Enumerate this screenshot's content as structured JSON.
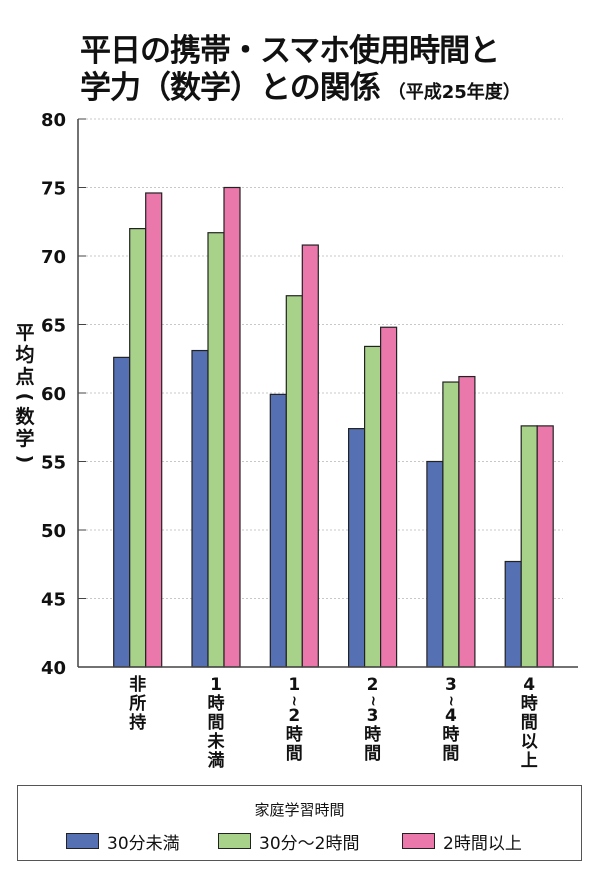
{
  "title": {
    "line1": "平日の携帯・スマホ使用時間と",
    "line2": "学力（数学）との関係",
    "subtitle": "（平成25年度）"
  },
  "ylabel_chars": [
    "平",
    "均",
    "点",
    "(",
    "数",
    "学",
    ")"
  ],
  "legend": {
    "title": "家庭学習時間",
    "items": [
      {
        "label": "30分未満",
        "color": "#5670B4"
      },
      {
        "label": "30分〜2時間",
        "color": "#A8D18A"
      },
      {
        "label": "2時間以上",
        "color": "#EA78AB"
      }
    ]
  },
  "chart_data": {
    "type": "bar",
    "title": "平日の携帯・スマホ使用時間と学力（数学）との関係（平成25年度）",
    "xlabel": "",
    "ylabel": "平均点（数学）",
    "ylim": [
      40,
      80
    ],
    "yticks": [
      40,
      45,
      50,
      55,
      60,
      65,
      70,
      75,
      80
    ],
    "grid": true,
    "legend_position": "bottom",
    "legend_title": "家庭学習時間",
    "categories": [
      "非所持",
      "1時間未満",
      "1〜2時間",
      "2〜3時間",
      "3〜4時間",
      "4時間以上"
    ],
    "category_label_lines": [
      [
        "非",
        "所",
        "持"
      ],
      [
        "1",
        "時",
        "間",
        "未",
        "満"
      ],
      [
        "1",
        "~",
        "2",
        "時",
        "間"
      ],
      [
        "2",
        "~",
        "3",
        "時",
        "間"
      ],
      [
        "3",
        "~",
        "4",
        "時",
        "間"
      ],
      [
        "4",
        "時",
        "間",
        "以",
        "上"
      ]
    ],
    "series": [
      {
        "name": "30分未満",
        "color": "#5670B4",
        "values": [
          62.6,
          63.1,
          59.9,
          57.4,
          55.0,
          47.7
        ]
      },
      {
        "name": "30分〜2時間",
        "color": "#A8D18A",
        "values": [
          72.0,
          71.7,
          67.1,
          63.4,
          60.8,
          57.6
        ]
      },
      {
        "name": "2時間以上",
        "color": "#EA78AB",
        "values": [
          74.6,
          75.0,
          70.8,
          64.8,
          61.2,
          57.6
        ]
      }
    ]
  }
}
